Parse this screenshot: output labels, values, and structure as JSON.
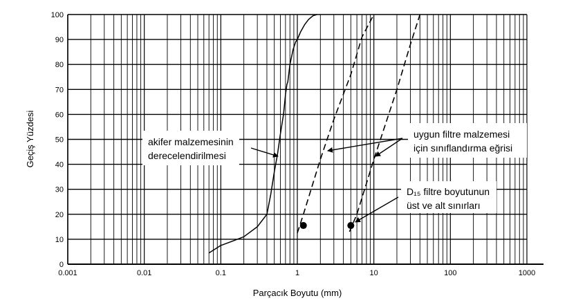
{
  "chart_data": {
    "type": "line",
    "title": "",
    "xlabel": "Parçacık Boyutu (mm)",
    "ylabel": "Geçiş Yüzdesi",
    "x_scale": "log",
    "xlim": [
      0.001,
      1000
    ],
    "ylim": [
      0,
      100
    ],
    "grid": true,
    "x_tick_labels": [
      "0.001",
      "0.01",
      "0.1",
      "1",
      "10",
      "100",
      "1000"
    ],
    "y_tick_labels": [
      "0",
      "10",
      "20",
      "30",
      "40",
      "50",
      "60",
      "70",
      "80",
      "90",
      "100"
    ],
    "series": [
      {
        "style": "solid",
        "x": [
          0.07,
          0.1,
          0.15,
          0.2,
          0.3,
          0.4,
          0.45,
          0.5,
          0.55,
          0.6,
          0.66,
          0.7,
          0.73,
          0.75,
          0.8,
          0.88,
          0.95,
          1.0,
          1.1,
          1.25,
          1.4,
          1.6,
          1.8
        ],
        "y": [
          4.5,
          7.5,
          9.5,
          11,
          15,
          20,
          28,
          37,
          44,
          52,
          60,
          68,
          72,
          73,
          80,
          86,
          89,
          90,
          93,
          96,
          98,
          99.5,
          100
        ]
      },
      {
        "style": "dashed",
        "x": [
          1.0,
          1.2,
          2.0,
          3.0,
          5.0,
          7.0,
          10.0
        ],
        "y": [
          12.5,
          20,
          42,
          58,
          76,
          91,
          100
        ]
      },
      {
        "style": "dashed",
        "x": [
          4.8,
          6.0,
          10.0,
          20.0,
          30.0,
          40.0
        ],
        "y": [
          13,
          20,
          42,
          70,
          88,
          100
        ]
      }
    ],
    "points": [
      {
        "x": 1.2,
        "y": 15.5
      },
      {
        "x": 5.0,
        "y": 15.5
      }
    ],
    "annotations": [
      {
        "lines": [
          "akifer malzemesinin",
          "derecelendirilmesi"
        ]
      },
      {
        "lines": [
          "uygun filtre malzemesi",
          "için sınıflandırma eğrisi"
        ]
      },
      {
        "lines": [
          "D₁₅ filtre boyutunun",
          "üst ve alt sınırları"
        ]
      }
    ]
  }
}
